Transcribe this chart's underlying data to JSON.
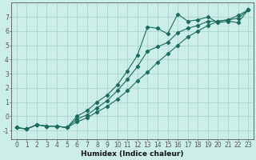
{
  "title": "",
  "xlabel": "Humidex (Indice chaleur)",
  "bg_color": "#cceee8",
  "grid_color": "#aad4ce",
  "line_color": "#1a6b60",
  "xlim": [
    -0.5,
    23.5
  ],
  "ylim": [
    -1.6,
    8.0
  ],
  "xticks": [
    0,
    1,
    2,
    3,
    4,
    5,
    6,
    7,
    8,
    9,
    10,
    11,
    12,
    13,
    14,
    15,
    16,
    17,
    18,
    19,
    20,
    21,
    22,
    23
  ],
  "yticks": [
    -1,
    0,
    1,
    2,
    3,
    4,
    5,
    6,
    7
  ],
  "line_lower_x": [
    0,
    1,
    2,
    3,
    4,
    5,
    6,
    7,
    8,
    9,
    10,
    11,
    12,
    13,
    14,
    15,
    16,
    17,
    18,
    19,
    20,
    21,
    22,
    23
  ],
  "line_lower_y": [
    -0.8,
    -0.9,
    -0.6,
    -0.7,
    -0.7,
    -0.8,
    -0.4,
    -0.1,
    0.3,
    0.7,
    1.2,
    1.8,
    2.5,
    3.1,
    3.8,
    4.4,
    5.0,
    5.6,
    6.0,
    6.4,
    6.7,
    6.8,
    7.1,
    7.5
  ],
  "line_upper_x": [
    0,
    1,
    2,
    3,
    4,
    5,
    6,
    7,
    8,
    9,
    10,
    11,
    12,
    13,
    14,
    15,
    16,
    17,
    18,
    19,
    20,
    21,
    22,
    23
  ],
  "line_upper_y": [
    -0.8,
    -0.9,
    -0.6,
    -0.7,
    -0.7,
    -0.8,
    0.0,
    0.4,
    1.0,
    1.5,
    2.2,
    3.2,
    4.3,
    6.3,
    6.2,
    5.8,
    7.2,
    6.7,
    6.8,
    7.0,
    6.6,
    6.7,
    6.6,
    7.5
  ],
  "line_mid_x": [
    0,
    1,
    2,
    3,
    4,
    5,
    6,
    7,
    8,
    9,
    10,
    11,
    12,
    13,
    14,
    15,
    16,
    17,
    18,
    19,
    20,
    21,
    22,
    23
  ],
  "line_mid_y": [
    -0.8,
    -0.9,
    -0.6,
    -0.7,
    -0.7,
    -0.8,
    -0.2,
    0.1,
    0.6,
    1.1,
    1.8,
    2.6,
    3.5,
    4.6,
    4.9,
    5.2,
    5.9,
    6.2,
    6.4,
    6.7,
    6.7,
    6.8,
    6.9,
    7.5
  ]
}
